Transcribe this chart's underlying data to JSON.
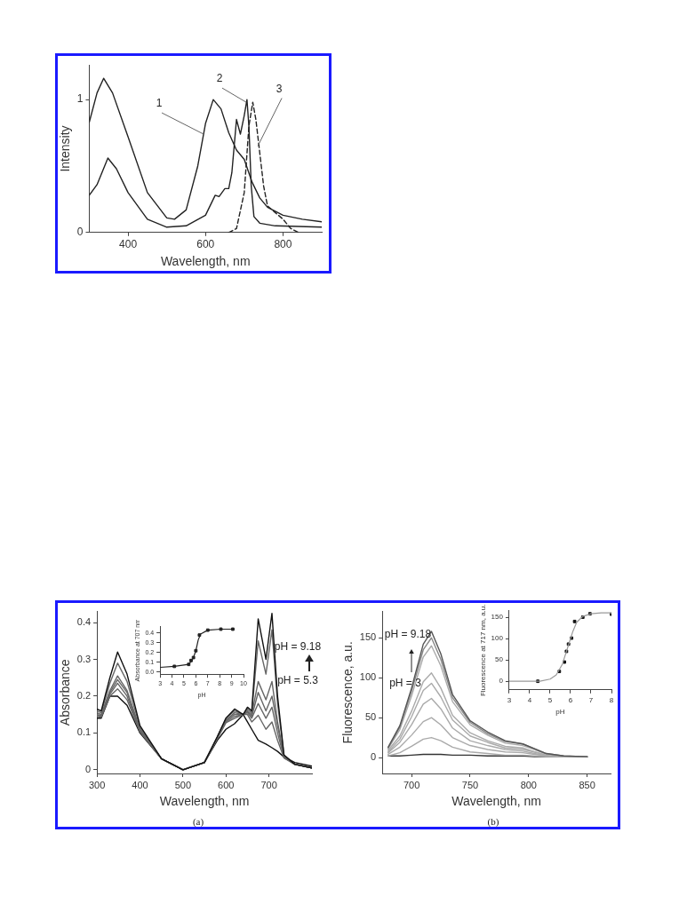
{
  "chart_data": [
    {
      "type": "line",
      "xlabel": "Wavelength, nm",
      "ylabel": "Intensity",
      "xlim": [
        300,
        900
      ],
      "ylim": [
        0,
        1.26
      ],
      "xticks": [
        400,
        600,
        800
      ],
      "yticks": [
        0,
        1
      ],
      "grid": false,
      "legend": false,
      "series": [
        {
          "color": "#222222",
          "x": [
            300,
            320,
            337,
            360,
            400,
            450,
            500,
            520,
            550,
            580,
            600,
            620,
            640,
            660,
            680,
            700,
            720,
            740,
            760,
            800,
            850,
            900
          ],
          "values": [
            0.83,
            1.05,
            1.16,
            1.05,
            0.72,
            0.3,
            0.11,
            0.1,
            0.17,
            0.5,
            0.82,
            1.0,
            0.93,
            0.75,
            0.62,
            0.55,
            0.38,
            0.26,
            0.19,
            0.13,
            0.1,
            0.08
          ]
        },
        {
          "color": "#222222",
          "x": [
            300,
            320,
            348,
            370,
            400,
            450,
            500,
            550,
            600,
            615,
            625,
            635,
            650,
            660,
            668,
            680,
            690,
            700,
            707,
            712,
            718,
            725,
            740,
            780,
            900
          ],
          "values": [
            0.28,
            0.36,
            0.56,
            0.48,
            0.3,
            0.1,
            0.04,
            0.05,
            0.13,
            0.22,
            0.28,
            0.27,
            0.33,
            0.33,
            0.45,
            0.85,
            0.74,
            0.88,
            1.0,
            0.8,
            0.35,
            0.12,
            0.07,
            0.05,
            0.04
          ]
        },
        {
          "color": "#222222",
          "line_style": "dashed",
          "x": [
            660,
            680,
            700,
            712,
            722,
            730,
            740,
            750,
            760,
            780,
            800,
            820,
            840
          ],
          "values": [
            0,
            0.03,
            0.3,
            0.8,
            0.98,
            0.85,
            0.6,
            0.35,
            0.2,
            0.15,
            0.1,
            0.03,
            0
          ]
        }
      ],
      "annotations": [
        {
          "text": "1",
          "x": 595,
          "y": 0.74
        },
        {
          "text": "2",
          "x": 705,
          "y": 0.98
        },
        {
          "text": "3",
          "x": 735,
          "y": 0.65
        }
      ]
    },
    {
      "type": "line",
      "xlabel": "Wavelength, nm",
      "ylabel": "Absorbance",
      "xlim": [
        300,
        800
      ],
      "ylim": [
        -0.01,
        0.43
      ],
      "xticks": [
        300,
        400,
        500,
        600,
        700
      ],
      "yticks": [
        {
          "value": 0,
          "label": "0"
        },
        0.1,
        0.2,
        0.3,
        0.4
      ],
      "grid": false,
      "legend": false,
      "x": [
        300,
        310,
        330,
        348,
        370,
        400,
        450,
        500,
        550,
        580,
        600,
        620,
        640,
        650,
        660,
        675,
        693,
        707,
        720,
        735,
        760,
        800
      ],
      "series": [
        {
          "color": "#111111",
          "values": [
            0.165,
            0.16,
            0.25,
            0.32,
            0.26,
            0.12,
            0.03,
            0,
            0.02,
            0.09,
            0.14,
            0.165,
            0.15,
            0.17,
            0.16,
            0.41,
            0.3,
            0.425,
            0.2,
            0.04,
            0.015,
            0.005
          ]
        },
        {
          "color": "#666666",
          "values": [
            0.16,
            0.155,
            0.235,
            0.29,
            0.24,
            0.115,
            0.03,
            0,
            0.02,
            0.09,
            0.14,
            0.16,
            0.15,
            0.165,
            0.155,
            0.35,
            0.26,
            0.38,
            0.18,
            0.04,
            0.015,
            0.005
          ]
        },
        {
          "color": "#666666",
          "values": [
            0.155,
            0.15,
            0.215,
            0.255,
            0.215,
            0.11,
            0.03,
            0,
            0.02,
            0.088,
            0.135,
            0.155,
            0.15,
            0.16,
            0.15,
            0.24,
            0.19,
            0.24,
            0.13,
            0.035,
            0.015,
            0.005
          ]
        },
        {
          "color": "#666666",
          "values": [
            0.15,
            0.148,
            0.21,
            0.245,
            0.21,
            0.108,
            0.03,
            0,
            0.02,
            0.087,
            0.133,
            0.15,
            0.15,
            0.158,
            0.145,
            0.21,
            0.16,
            0.2,
            0.12,
            0.035,
            0.015,
            0.005
          ]
        },
        {
          "color": "#666666",
          "values": [
            0.148,
            0.145,
            0.205,
            0.235,
            0.2,
            0.105,
            0.03,
            0,
            0.02,
            0.086,
            0.13,
            0.145,
            0.15,
            0.155,
            0.14,
            0.18,
            0.14,
            0.17,
            0.1,
            0.033,
            0.015,
            0.005
          ]
        },
        {
          "color": "#666666",
          "values": [
            0.145,
            0.143,
            0.2,
            0.22,
            0.19,
            0.103,
            0.03,
            0,
            0.02,
            0.085,
            0.128,
            0.14,
            0.15,
            0.15,
            0.13,
            0.148,
            0.11,
            0.13,
            0.08,
            0.032,
            0.015,
            0.005
          ]
        },
        {
          "color": "#111111",
          "values": [
            0.14,
            0.14,
            0.2,
            0.2,
            0.175,
            0.1,
            0.03,
            0,
            0.02,
            0.08,
            0.11,
            0.125,
            0.15,
            0.13,
            0.11,
            0.08,
            0.07,
            0.06,
            0.05,
            0.035,
            0.02,
            0.01
          ]
        }
      ],
      "annotations": [
        "pH = 9.18",
        "pH = 5.3",
        "(a)"
      ]
    },
    {
      "type": "line",
      "xlabel": "pH",
      "ylabel": "Absorbance at 707 nm",
      "xlim": [
        3,
        10
      ],
      "ylim": [
        -0.02,
        0.47
      ],
      "xticks": [
        3,
        4,
        5,
        6,
        7,
        8,
        9,
        10
      ],
      "yticks": [
        "0.0",
        0.1,
        0.2,
        0.3,
        0.4
      ],
      "grid": false,
      "legend": false,
      "marker": "square",
      "series": [
        {
          "color": "#222222",
          "marker": "none",
          "x": [
            3,
            4.2,
            5.4,
            5.6,
            5.8,
            6.0,
            6.2,
            6.4,
            7.0,
            8.1,
            9.2
          ],
          "values": [
            0.05,
            0.06,
            0.08,
            0.11,
            0.15,
            0.22,
            0.33,
            0.39,
            0.43,
            0.44,
            0.44
          ]
        },
        {
          "type": "scatter",
          "color": "#222222",
          "x": [
            4.2,
            5.4,
            5.6,
            5.8,
            6.0,
            6.3,
            7.0,
            8.1,
            9.1
          ],
          "values": [
            0.06,
            0.08,
            0.12,
            0.15,
            0.22,
            0.38,
            0.43,
            0.44,
            0.44
          ]
        }
      ]
    },
    {
      "type": "line",
      "xlabel": "Wavelength, nm",
      "ylabel": "Fluorescence, a.u.",
      "xlim": [
        675,
        870
      ],
      "ylim": [
        -20,
        183
      ],
      "xticks": [
        700,
        750,
        800,
        850
      ],
      "yticks": [
        0,
        50,
        100,
        150
      ],
      "grid": false,
      "legend": false,
      "x": [
        680,
        690,
        700,
        710,
        717,
        725,
        735,
        750,
        765,
        780,
        795,
        805,
        815,
        830,
        850
      ],
      "series": [
        {
          "color": "#555555",
          "values": [
            13,
            40,
            87,
            142,
            158,
            130,
            79,
            46,
            32,
            21,
            17,
            11,
            5,
            2,
            1
          ]
        },
        {
          "color": "#888888",
          "values": [
            12,
            38,
            83,
            135,
            150,
            123,
            75,
            44,
            30,
            20,
            17,
            11,
            5,
            2,
            1
          ]
        },
        {
          "color": "#aaaaaa",
          "values": [
            11,
            35,
            77,
            126,
            140,
            115,
            70,
            41,
            28,
            18,
            15,
            10,
            4,
            1,
            1
          ]
        },
        {
          "color": "#aaaaaa",
          "values": [
            9,
            27,
            58,
            95,
            106,
            87,
            53,
            31,
            21,
            14,
            12,
            7,
            3,
            1,
            1
          ]
        },
        {
          "color": "#aaaaaa",
          "values": [
            7,
            23,
            51,
            84,
            93,
            76,
            47,
            27,
            19,
            12,
            10,
            7,
            3,
            1,
            1
          ]
        },
        {
          "color": "#aaaaaa",
          "values": [
            6,
            19,
            41,
            67,
            74,
            61,
            37,
            21,
            15,
            10,
            8,
            5,
            2,
            1,
            1
          ]
        },
        {
          "color": "#aaaaaa",
          "values": [
            4,
            13,
            28,
            45,
            50,
            41,
            25,
            15,
            10,
            7,
            6,
            4,
            2,
            1,
            1
          ]
        },
        {
          "color": "#aaaaaa",
          "values": [
            2,
            6,
            14,
            23,
            25,
            21,
            13,
            7,
            5,
            3,
            3,
            2,
            1,
            1,
            1
          ]
        },
        {
          "color": "#333333",
          "values": [
            2,
            2,
            3,
            4,
            4,
            4,
            3,
            3,
            2,
            2,
            2,
            1,
            1,
            1,
            1
          ]
        }
      ],
      "annotations": [
        "pH = 9.18",
        "pH = 3",
        "(b)"
      ]
    },
    {
      "type": "line",
      "xlabel": "pH",
      "ylabel": "Fluorescence at 717 nm, a.u.",
      "xlim": [
        3,
        8
      ],
      "ylim": [
        -20,
        165
      ],
      "xticks": [
        3,
        4,
        5,
        6,
        7,
        8
      ],
      "yticks": [
        0,
        50,
        100,
        150
      ],
      "grid": false,
      "legend": false,
      "marker": "square",
      "series": [
        {
          "color": "#999999",
          "marker": "none",
          "x": [
            3,
            4.5,
            5,
            5.3,
            5.6,
            5.9,
            6.1,
            6.3,
            6.6,
            7,
            7.5,
            8
          ],
          "values": [
            0,
            0,
            5,
            15,
            40,
            85,
            115,
            138,
            152,
            158,
            160,
            160
          ]
        },
        {
          "type": "scatter",
          "color": "#111111",
          "x": [
            4.4,
            5.45,
            5.7,
            5.8,
            5.9,
            6.05,
            6.2,
            6.6,
            6.95,
            8
          ],
          "values": [
            0,
            23,
            45,
            70,
            87,
            101,
            140,
            150,
            158,
            157
          ]
        }
      ]
    }
  ]
}
